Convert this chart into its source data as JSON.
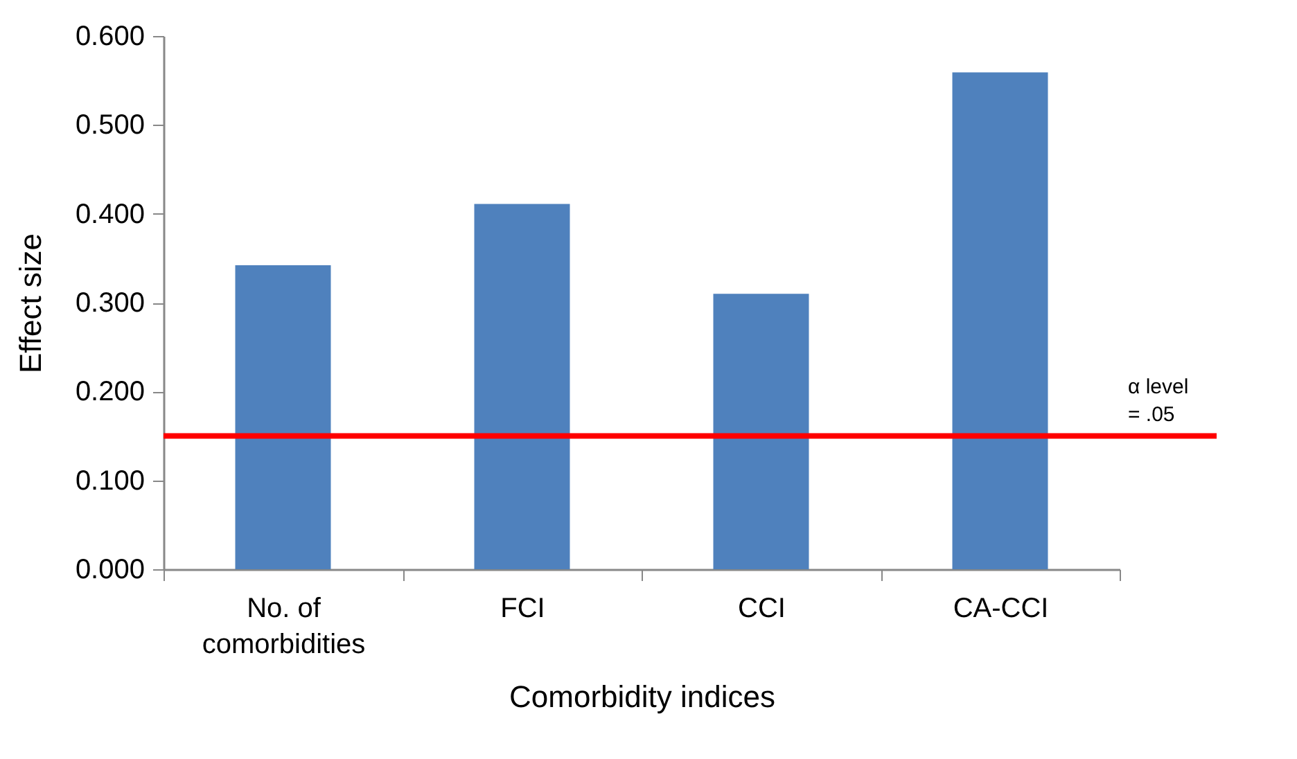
{
  "chart_data": {
    "type": "bar",
    "xlabel": "Comorbidity indices",
    "ylabel": "Effect size",
    "categories": [
      "No. of comorbidities",
      "FCI",
      "CCI",
      "CA-CCI"
    ],
    "values": [
      0.342,
      0.411,
      0.31,
      0.559
    ],
    "color": "#4f81bd",
    "ylim": [
      0,
      0.6
    ],
    "yticks": [
      {
        "value": 0,
        "label": "0.000"
      },
      {
        "value": 0.1,
        "label": "0.100"
      },
      {
        "value": 0.2,
        "label": "0.200"
      },
      {
        "value": 0.3,
        "label": "0.300"
      },
      {
        "value": 0.4,
        "label": "0.400"
      },
      {
        "value": 0.5,
        "label": "0.500"
      },
      {
        "value": 0.6,
        "label": "0.600"
      }
    ],
    "grid": false,
    "ref_lines": [
      {
        "axis": "y",
        "value": 0.15,
        "label": "α level = .05",
        "color": "#ff0000"
      }
    ]
  }
}
